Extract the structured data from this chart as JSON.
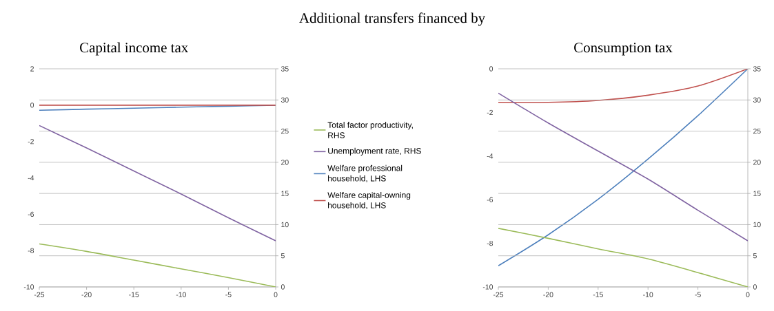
{
  "chart_data": [
    {
      "type": "line",
      "title": "Capital income tax",
      "annotations": [
        "Additional transfers financed by"
      ],
      "x": [
        -25,
        -20,
        -15,
        -10,
        -5,
        0
      ],
      "xlim": [
        -25,
        0
      ],
      "xticks": [
        -25,
        -20,
        -15,
        -10,
        -5,
        0
      ],
      "ylim": [
        -10,
        2
      ],
      "yticks": [
        -10,
        -8,
        -6,
        -4,
        -2,
        0,
        2
      ],
      "y2lim": [
        0,
        35
      ],
      "y2ticks": [
        0,
        5,
        10,
        15,
        20,
        25,
        30,
        35
      ],
      "grid": "y",
      "legend": "right",
      "series": [
        {
          "name": "Total factor productivity, RHS",
          "color": "#9bbb59",
          "axis": "y2",
          "values": [
            6.9,
            5.7,
            4.3,
            2.9,
            1.5,
            0
          ]
        },
        {
          "name": "Unemployment rate, RHS",
          "color": "#8064a2",
          "axis": "y2",
          "values": [
            25.9,
            22.3,
            18.6,
            14.9,
            11.1,
            7.4
          ]
        },
        {
          "name": "Welfare professional household, LHS",
          "color": "#4f81bd",
          "axis": "y",
          "values": [
            -0.28,
            -0.22,
            -0.17,
            -0.11,
            -0.06,
            0
          ]
        },
        {
          "name": "Welfare capital-owning household, LHS",
          "color": "#c0504d",
          "axis": "y",
          "values": [
            0,
            0,
            0,
            0,
            0,
            0
          ]
        }
      ]
    },
    {
      "type": "line",
      "title": "Consumption tax",
      "x": [
        -25,
        -20,
        -15,
        -10,
        -5,
        0
      ],
      "xlim": [
        -25,
        0
      ],
      "xticks": [
        -25,
        -20,
        -15,
        -10,
        -5,
        0
      ],
      "ylim": [
        -10,
        0
      ],
      "yticks": [
        -10,
        -8,
        -6,
        -4,
        -2,
        0
      ],
      "y2lim": [
        0,
        35
      ],
      "y2ticks": [
        0,
        5,
        10,
        15,
        20,
        25,
        30,
        35
      ],
      "grid": "y",
      "series": [
        {
          "color": "#9bbb59",
          "axis": "y2",
          "values": [
            9.4,
            7.8,
            6.1,
            4.5,
            2.3,
            0
          ]
        },
        {
          "color": "#8064a2",
          "axis": "y2",
          "values": [
            31.1,
            26.3,
            21.8,
            17.3,
            12.3,
            7.4
          ]
        },
        {
          "color": "#4f81bd",
          "axis": "y",
          "values": [
            -9.03,
            -7.61,
            -5.98,
            -4.14,
            -2.15,
            0
          ]
        },
        {
          "color": "#c0504d",
          "axis": "y",
          "values": [
            -1.54,
            -1.54,
            -1.45,
            -1.21,
            -0.79,
            0
          ]
        }
      ]
    }
  ]
}
